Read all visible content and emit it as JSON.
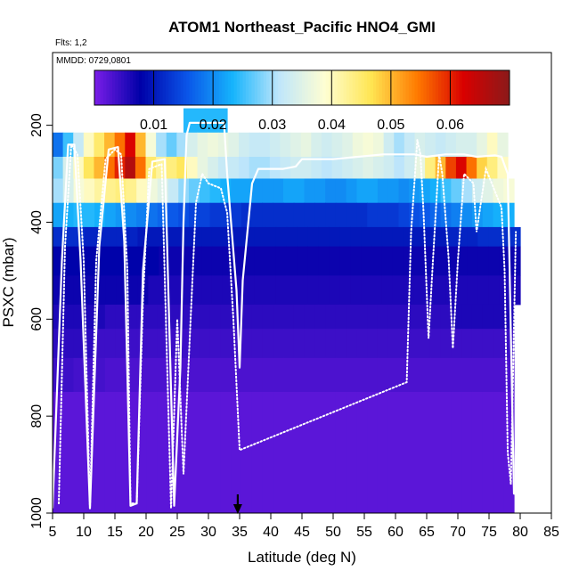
{
  "chart_data": {
    "type": "heatmap",
    "title": "ATOM1 Northeast_Pacific HNO4_GMI",
    "flights_label": "Flts: 1,2",
    "date_label": "MMDD: 0729,0801",
    "xlabel": "Latitude (deg N)",
    "ylabel": "PSXC (mbar)",
    "xlim": [
      5,
      85
    ],
    "ylim": [
      1000,
      50
    ],
    "x_ticks": [
      "5",
      "10",
      "15",
      "20",
      "25",
      "30",
      "35",
      "40",
      "45",
      "50",
      "55",
      "60",
      "65",
      "70",
      "75",
      "80",
      "85"
    ],
    "y_ticks": [
      "200",
      "400",
      "600",
      "800",
      "1000"
    ],
    "colorbar": {
      "range": [
        0,
        0.07
      ],
      "ticks": [
        "0.01",
        "0.02",
        "0.03",
        "0.04",
        "0.05",
        "0.06"
      ],
      "colors": [
        "#7b1ee8",
        "#0000a8",
        "#0a54e8",
        "#16b4fc",
        "#bfe6fb",
        "#fefed2",
        "#ffe552",
        "#ff7a00",
        "#d90000",
        "#8a1a1a"
      ]
    },
    "rows": [
      {
        "p_top": 165,
        "p_bot": 215,
        "x0": 26,
        "x1": 33,
        "values": [
          0.024,
          0.024
        ]
      },
      {
        "p_top": 215,
        "p_bot": 265,
        "x0": 5,
        "x1": 78,
        "values": [
          0.018,
          0.025,
          0.032,
          0.04,
          0.045,
          0.05,
          0.055,
          0.062,
          0.05,
          0.038,
          0.03,
          0.027,
          0.03,
          0.034,
          0.036,
          0.037,
          0.036,
          0.035,
          0.033,
          0.032,
          0.032,
          0.033,
          0.034,
          0.035,
          0.036,
          0.034,
          0.033,
          0.034,
          0.035,
          0.037,
          0.038,
          0.037,
          0.033,
          0.03,
          0.032,
          0.034,
          0.033,
          0.032,
          0.033,
          0.034,
          0.034,
          0.036,
          0.04,
          0.036
        ]
      },
      {
        "p_top": 265,
        "p_bot": 310,
        "x0": 5,
        "x1": 78,
        "values": [
          0.028,
          0.034,
          0.04,
          0.046,
          0.05,
          0.055,
          0.06,
          0.066,
          0.055,
          0.045,
          0.042,
          0.044,
          0.046,
          0.04,
          0.036,
          0.034,
          0.032,
          0.032,
          0.031,
          0.03,
          0.03,
          0.031,
          0.032,
          0.033,
          0.033,
          0.032,
          0.031,
          0.032,
          0.033,
          0.034,
          0.035,
          0.034,
          0.033,
          0.031,
          0.033,
          0.036,
          0.044,
          0.05,
          0.058,
          0.062,
          0.055,
          0.048,
          0.044,
          0.04
        ]
      },
      {
        "p_top": 310,
        "p_bot": 360,
        "x0": 5,
        "x1": 79,
        "values": [
          0.03,
          0.034,
          0.038,
          0.04,
          0.042,
          0.043,
          0.044,
          0.043,
          0.04,
          0.037,
          0.035,
          0.032,
          0.029,
          0.027,
          0.025,
          0.024,
          0.023,
          0.022,
          0.022,
          0.021,
          0.021,
          0.021,
          0.022,
          0.022,
          0.021,
          0.021,
          0.02,
          0.02,
          0.021,
          0.022,
          0.022,
          0.021,
          0.021,
          0.02,
          0.021,
          0.022,
          0.023,
          0.025,
          0.027,
          0.03,
          0.033,
          0.035,
          0.037,
          0.038
        ]
      },
      {
        "p_top": 360,
        "p_bot": 410,
        "x0": 5,
        "x1": 79,
        "values": [
          0.022,
          0.023,
          0.024,
          0.024,
          0.023,
          0.022,
          0.021,
          0.02,
          0.019,
          0.018,
          0.017,
          0.016,
          0.015,
          0.014,
          0.014,
          0.013,
          0.013,
          0.013,
          0.012,
          0.012,
          0.012,
          0.012,
          0.012,
          0.012,
          0.012,
          0.012,
          0.012,
          0.012,
          0.012,
          0.012,
          0.013,
          0.013,
          0.013,
          0.014,
          0.015,
          0.016,
          0.017,
          0.018,
          0.019,
          0.02,
          0.021,
          0.022,
          0.023,
          0.023
        ]
      },
      {
        "p_top": 410,
        "p_bot": 450,
        "x0": 5,
        "x1": 80,
        "values": [
          0.012,
          0.012,
          0.012,
          0.011,
          0.011,
          0.011,
          0.011,
          0.011,
          0.01,
          0.01,
          0.01,
          0.01,
          0.01,
          0.01,
          0.01,
          0.01,
          0.01,
          0.01,
          0.01,
          0.01,
          0.01,
          0.01,
          0.01,
          0.01,
          0.01,
          0.01,
          0.01,
          0.01,
          0.01,
          0.01,
          0.01,
          0.01,
          0.01,
          0.01,
          0.01,
          0.01,
          0.01,
          0.011,
          0.011,
          0.011,
          0.012,
          0.012,
          0.012,
          0.012
        ]
      },
      {
        "p_top": 450,
        "p_bot": 510,
        "x0": 5,
        "x1": 80,
        "values": [
          0.008,
          0.008,
          0.008,
          0.008,
          0.008,
          0.008,
          0.008,
          0.008,
          0.008,
          0.008,
          0.007,
          0.007,
          0.007,
          0.007,
          0.007,
          0.007,
          0.007,
          0.007,
          0.007,
          0.007,
          0.007,
          0.007,
          0.007,
          0.007,
          0.007,
          0.007,
          0.007,
          0.007,
          0.007,
          0.007,
          0.007,
          0.007,
          0.007,
          0.007,
          0.007,
          0.007,
          0.007,
          0.007,
          0.007,
          0.007,
          0.007,
          0.007,
          0.007,
          0.007
        ]
      },
      {
        "p_top": 510,
        "p_bot": 570,
        "x0": 5,
        "x1": 80,
        "values": [
          0.007,
          0.007,
          0.007,
          0.007,
          0.007,
          0.007,
          0.007,
          0.007,
          0.007,
          0.006,
          0.006,
          0.006,
          0.006,
          0.006,
          0.006,
          0.006,
          0.006,
          0.006,
          0.006,
          0.006,
          0.006,
          0.006,
          0.006,
          0.006,
          0.006,
          0.006,
          0.006,
          0.006,
          0.006,
          0.006,
          0.006,
          0.006,
          0.006,
          0.006,
          0.006,
          0.006,
          0.006,
          0.006,
          0.006,
          0.006,
          0.006,
          0.006,
          0.006,
          0.006
        ]
      },
      {
        "p_top": 570,
        "p_bot": 620,
        "x0": 5,
        "x1": 79,
        "values": [
          0.006,
          0.006,
          0.006,
          0.006,
          0.006,
          0.005,
          0.005,
          0.005,
          0.005,
          0.005,
          0.005,
          0.005,
          0.005,
          0.005,
          0.005,
          0.005,
          0.005,
          0.005,
          0.005,
          0.005,
          0.005,
          0.005,
          0.005,
          0.005,
          0.005,
          0.005,
          0.005,
          0.005,
          0.005,
          0.005,
          0.005,
          0.005,
          0.005,
          0.005,
          0.005,
          0.005,
          0.005,
          0.005,
          0.006,
          0.006,
          0.006,
          0.006,
          0.006,
          0.006
        ]
      },
      {
        "p_top": 620,
        "p_bot": 680,
        "x0": 5,
        "x1": 79,
        "values": [
          0.005,
          0.005,
          0.005,
          0.005,
          0.004,
          0.004,
          0.004,
          0.004,
          0.004,
          0.004,
          0.004,
          0.004,
          0.004,
          0.004,
          0.004,
          0.004,
          0.004,
          0.004,
          0.004,
          0.004,
          0.004,
          0.004,
          0.004,
          0.004,
          0.004,
          0.004,
          0.004,
          0.004,
          0.004,
          0.004,
          0.004,
          0.004,
          0.004,
          0.004,
          0.004,
          0.004,
          0.004,
          0.004,
          0.004,
          0.004,
          0.004,
          0.004,
          0.004,
          0.004
        ]
      },
      {
        "p_top": 680,
        "p_bot": 750,
        "x0": 5,
        "x1": 79,
        "values": [
          0.004,
          0.004,
          0.0035,
          0.0035,
          0.0035,
          0.003,
          0.003,
          0.003,
          0.003,
          0.003,
          0.003,
          0.003,
          0.003,
          0.003,
          0.003,
          0.003,
          0.003,
          0.003,
          0.003,
          0.003,
          0.003,
          0.003,
          0.003,
          0.003,
          0.003,
          0.003,
          0.003,
          0.003,
          0.003,
          0.003,
          0.003,
          0.003,
          0.003,
          0.003,
          0.003,
          0.003,
          0.003,
          0.003,
          0.003,
          0.003,
          0.003,
          0.003,
          0.003,
          0.003
        ]
      },
      {
        "p_top": 750,
        "p_bot": 1000,
        "x0": 5,
        "x1": 79,
        "values": [
          0.002,
          0.002,
          0.002,
          0.002,
          0.002,
          0.002,
          0.002,
          0.002,
          0.002,
          0.002,
          0.002,
          0.002,
          0.002,
          0.002,
          0.002,
          0.002,
          0.002,
          0.002,
          0.002,
          0.002,
          0.002,
          0.002,
          0.002,
          0.002,
          0.002,
          0.002,
          0.002,
          0.002,
          0.002,
          0.002,
          0.002,
          0.002,
          0.002,
          0.002,
          0.002,
          0.002,
          0.002,
          0.002,
          0.002,
          0.002,
          0.002,
          0.002,
          0.002,
          0.002
        ]
      }
    ],
    "solid_track": [
      [
        5,
        990
      ],
      [
        6.5,
        480
      ],
      [
        7.5,
        240
      ],
      [
        8.5,
        240
      ],
      [
        9.5,
        480
      ],
      [
        11,
        990
      ],
      [
        12.5,
        450
      ],
      [
        14,
        250
      ],
      [
        15.5,
        245
      ],
      [
        16.5,
        440
      ],
      [
        17.5,
        985
      ],
      [
        18.5,
        980
      ],
      [
        19.5,
        500
      ],
      [
        21,
        275
      ],
      [
        23,
        270
      ],
      [
        24.5,
        985
      ],
      [
        25.5,
        700
      ],
      [
        26,
        400
      ],
      [
        26.5,
        220
      ],
      [
        27,
        195
      ],
      [
        32.5,
        195
      ],
      [
        33,
        300
      ],
      [
        34.5,
        540
      ],
      [
        35,
        700
      ],
      [
        35.5,
        520
      ],
      [
        37,
        320
      ],
      [
        38,
        290
      ],
      [
        42,
        290
      ],
      [
        44,
        285
      ],
      [
        45,
        270
      ],
      [
        50,
        270
      ],
      [
        58,
        260
      ],
      [
        63,
        260
      ],
      [
        65,
        265
      ],
      [
        68,
        260
      ],
      [
        71,
        260
      ],
      [
        73,
        265
      ],
      [
        76,
        262
      ],
      [
        77,
        265
      ],
      [
        78,
        300
      ],
      [
        79,
        960
      ],
      [
        80,
        962
      ]
    ],
    "dotted_track": [
      [
        6,
        980
      ],
      [
        7,
        450
      ],
      [
        8,
        240
      ],
      [
        9,
        260
      ],
      [
        10,
        480
      ],
      [
        11,
        990
      ],
      [
        12,
        480
      ],
      [
        13.5,
        270
      ],
      [
        15,
        250
      ],
      [
        16,
        260
      ],
      [
        17,
        500
      ],
      [
        17.5,
        980
      ],
      [
        18.5,
        980
      ],
      [
        19.5,
        560
      ],
      [
        20.5,
        290
      ],
      [
        22.5,
        280
      ],
      [
        24,
        990
      ],
      [
        25,
        600
      ],
      [
        26,
        920
      ],
      [
        28,
        360
      ],
      [
        29,
        300
      ],
      [
        30,
        320
      ],
      [
        32,
        330
      ],
      [
        33,
        380
      ],
      [
        34,
        600
      ],
      [
        35,
        870
      ],
      [
        61.8,
        730
      ],
      [
        62.5,
        420
      ],
      [
        63.5,
        230
      ],
      [
        64,
        260
      ],
      [
        64.5,
        380
      ],
      [
        65.3,
        640
      ],
      [
        66,
        480
      ],
      [
        67,
        260
      ],
      [
        67.5,
        300
      ],
      [
        68.5,
        470
      ],
      [
        69.2,
        660
      ],
      [
        70,
        480
      ],
      [
        71,
        300
      ],
      [
        72.5,
        320
      ],
      [
        73,
        420
      ],
      [
        74.5,
        290
      ],
      [
        77,
        370
      ],
      [
        77.5,
        500
      ],
      [
        78,
        875
      ],
      [
        78.5,
        940
      ],
      [
        79,
        620
      ],
      [
        79.3,
        420
      ]
    ],
    "arrow_x": 34.7
  }
}
